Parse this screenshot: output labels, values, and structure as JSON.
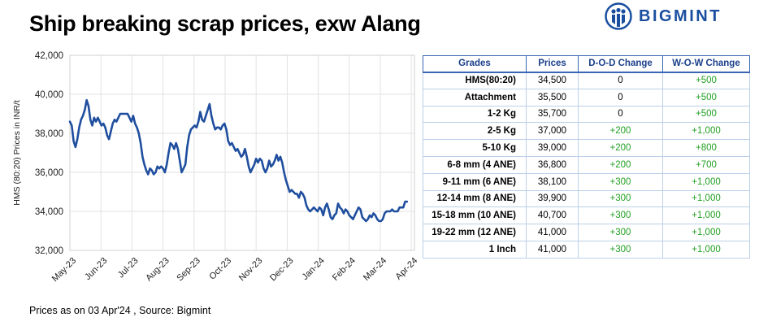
{
  "title": "Ship breaking scrap prices, exw Alang",
  "logo": {
    "text": "BIGMINT",
    "color": "#1a4fa0"
  },
  "footer": "Prices as on 03 Apr'24 , Source: Bigmint",
  "colors": {
    "line": "#1f4e9e",
    "positive": "#22a022",
    "table_border": "#3a66b5",
    "header_text": "#1a3f8a"
  },
  "chart_data": {
    "type": "line",
    "title": "",
    "ylabel": "HMS (80:20) Prices in INR/t",
    "xlabel": "",
    "ylim": [
      32000,
      42000
    ],
    "yticks": [
      32000,
      34000,
      36000,
      38000,
      40000,
      42000
    ],
    "ytick_labels": [
      "32,000",
      "34,000",
      "36,000",
      "38,000",
      "40,000",
      "42,000"
    ],
    "xtick_labels": [
      "May-23",
      "Jun-23",
      "Jul-23",
      "Aug-23",
      "Sep-23",
      "Oct-23",
      "Nov-23",
      "Dec-23",
      "Jan-24",
      "Feb-24",
      "Mar-24",
      "Apr-24"
    ],
    "x_month_start": 0,
    "x_month_end": 11.1,
    "grid": true,
    "legend": "none",
    "series": [
      {
        "points": [
          [
            0.0,
            38600
          ],
          [
            0.06,
            38400
          ],
          [
            0.12,
            37600
          ],
          [
            0.18,
            37300
          ],
          [
            0.24,
            37700
          ],
          [
            0.3,
            38300
          ],
          [
            0.36,
            38700
          ],
          [
            0.42,
            38900
          ],
          [
            0.48,
            39200
          ],
          [
            0.54,
            39700
          ],
          [
            0.6,
            39400
          ],
          [
            0.66,
            38700
          ],
          [
            0.72,
            38400
          ],
          [
            0.78,
            38800
          ],
          [
            0.84,
            38600
          ],
          [
            0.9,
            38800
          ],
          [
            0.96,
            38600
          ],
          [
            1.02,
            38400
          ],
          [
            1.08,
            38500
          ],
          [
            1.14,
            38300
          ],
          [
            1.2,
            37900
          ],
          [
            1.26,
            37700
          ],
          [
            1.32,
            38100
          ],
          [
            1.38,
            38500
          ],
          [
            1.44,
            38700
          ],
          [
            1.5,
            38600
          ],
          [
            1.56,
            38800
          ],
          [
            1.62,
            39000
          ],
          [
            1.74,
            39000
          ],
          [
            1.86,
            39000
          ],
          [
            1.92,
            38800
          ],
          [
            1.98,
            38600
          ],
          [
            2.04,
            38900
          ],
          [
            2.1,
            38500
          ],
          [
            2.16,
            38300
          ],
          [
            2.22,
            38000
          ],
          [
            2.28,
            37500
          ],
          [
            2.34,
            36800
          ],
          [
            2.4,
            36400
          ],
          [
            2.46,
            36100
          ],
          [
            2.52,
            35900
          ],
          [
            2.58,
            36200
          ],
          [
            2.64,
            36100
          ],
          [
            2.7,
            35900
          ],
          [
            2.76,
            36000
          ],
          [
            2.82,
            36300
          ],
          [
            2.88,
            36200
          ],
          [
            2.94,
            36300
          ],
          [
            3.0,
            36200
          ],
          [
            3.06,
            36000
          ],
          [
            3.12,
            36400
          ],
          [
            3.18,
            37000
          ],
          [
            3.24,
            37500
          ],
          [
            3.3,
            37400
          ],
          [
            3.36,
            37200
          ],
          [
            3.42,
            37500
          ],
          [
            3.48,
            37200
          ],
          [
            3.54,
            36600
          ],
          [
            3.6,
            36000
          ],
          [
            3.66,
            36200
          ],
          [
            3.72,
            36400
          ],
          [
            3.78,
            37300
          ],
          [
            3.84,
            37900
          ],
          [
            3.9,
            38200
          ],
          [
            3.96,
            38300
          ],
          [
            4.02,
            38400
          ],
          [
            4.08,
            38300
          ],
          [
            4.14,
            38600
          ],
          [
            4.2,
            39100
          ],
          [
            4.26,
            38700
          ],
          [
            4.32,
            38600
          ],
          [
            4.38,
            38900
          ],
          [
            4.44,
            39200
          ],
          [
            4.5,
            39500
          ],
          [
            4.56,
            38900
          ],
          [
            4.62,
            38500
          ],
          [
            4.68,
            38200
          ],
          [
            4.74,
            38300
          ],
          [
            4.8,
            38300
          ],
          [
            4.86,
            38200
          ],
          [
            4.92,
            38400
          ],
          [
            4.98,
            38500
          ],
          [
            5.04,
            38200
          ],
          [
            5.1,
            37600
          ],
          [
            5.16,
            37400
          ],
          [
            5.22,
            37500
          ],
          [
            5.28,
            37300
          ],
          [
            5.34,
            37100
          ],
          [
            5.4,
            37200
          ],
          [
            5.46,
            37000
          ],
          [
            5.52,
            36800
          ],
          [
            5.58,
            36900
          ],
          [
            5.64,
            37200
          ],
          [
            5.7,
            36800
          ],
          [
            5.76,
            36300
          ],
          [
            5.82,
            36000
          ],
          [
            5.88,
            36200
          ],
          [
            5.94,
            36400
          ],
          [
            6.0,
            36700
          ],
          [
            6.06,
            36500
          ],
          [
            6.12,
            36700
          ],
          [
            6.18,
            36600
          ],
          [
            6.24,
            36200
          ],
          [
            6.3,
            36000
          ],
          [
            6.36,
            36200
          ],
          [
            6.42,
            36600
          ],
          [
            6.48,
            36300
          ],
          [
            6.54,
            36400
          ],
          [
            6.6,
            36600
          ],
          [
            6.66,
            36900
          ],
          [
            6.72,
            36600
          ],
          [
            6.78,
            36800
          ],
          [
            6.84,
            36500
          ],
          [
            6.9,
            36000
          ],
          [
            6.96,
            35600
          ],
          [
            7.02,
            35300
          ],
          [
            7.08,
            35000
          ],
          [
            7.14,
            35100
          ],
          [
            7.2,
            35000
          ],
          [
            7.26,
            34900
          ],
          [
            7.32,
            34900
          ],
          [
            7.38,
            34700
          ],
          [
            7.44,
            35000
          ],
          [
            7.5,
            34900
          ],
          [
            7.56,
            34700
          ],
          [
            7.62,
            34300
          ],
          [
            7.68,
            34100
          ],
          [
            7.74,
            34000
          ],
          [
            7.8,
            34100
          ],
          [
            7.86,
            34200
          ],
          [
            7.92,
            34100
          ],
          [
            7.98,
            34000
          ],
          [
            8.04,
            34200
          ],
          [
            8.1,
            34100
          ],
          [
            8.16,
            33800
          ],
          [
            8.22,
            34200
          ],
          [
            8.28,
            34400
          ],
          [
            8.34,
            34100
          ],
          [
            8.4,
            33700
          ],
          [
            8.46,
            33600
          ],
          [
            8.52,
            33800
          ],
          [
            8.58,
            33900
          ],
          [
            8.64,
            34400
          ],
          [
            8.7,
            34200
          ],
          [
            8.76,
            34100
          ],
          [
            8.82,
            33900
          ],
          [
            8.88,
            34100
          ],
          [
            8.94,
            34000
          ],
          [
            9.0,
            33800
          ],
          [
            9.06,
            33700
          ],
          [
            9.12,
            33600
          ],
          [
            9.18,
            33800
          ],
          [
            9.24,
            34000
          ],
          [
            9.3,
            34200
          ],
          [
            9.36,
            34100
          ],
          [
            9.42,
            33700
          ],
          [
            9.48,
            33600
          ],
          [
            9.54,
            33500
          ],
          [
            9.6,
            33600
          ],
          [
            9.66,
            33800
          ],
          [
            9.72,
            33700
          ],
          [
            9.78,
            33900
          ],
          [
            9.84,
            33800
          ],
          [
            9.9,
            33600
          ],
          [
            9.96,
            33500
          ],
          [
            10.02,
            33500
          ],
          [
            10.08,
            33600
          ],
          [
            10.14,
            33900
          ],
          [
            10.2,
            34000
          ],
          [
            10.26,
            34000
          ],
          [
            10.32,
            34000
          ],
          [
            10.38,
            34100
          ],
          [
            10.44,
            34000
          ],
          [
            10.5,
            34000
          ],
          [
            10.56,
            34000
          ],
          [
            10.62,
            34200
          ],
          [
            10.68,
            34200
          ],
          [
            10.74,
            34200
          ],
          [
            10.8,
            34500
          ],
          [
            10.86,
            34500
          ]
        ]
      }
    ]
  },
  "table": {
    "headers": [
      "Grades",
      "Prices",
      "D-O-D Change",
      "W-O-W Change"
    ],
    "rows": [
      {
        "grade": "HMS(80:20)",
        "price": "34,500",
        "dod": "0",
        "wow": "+500"
      },
      {
        "grade": "Attachment",
        "price": "35,500",
        "dod": "0",
        "wow": "+500"
      },
      {
        "grade": "1-2 Kg",
        "price": "35,700",
        "dod": "0",
        "wow": "+500"
      },
      {
        "grade": "2-5 Kg",
        "price": "37,000",
        "dod": "+200",
        "wow": "+1,000"
      },
      {
        "grade": "5-10 Kg",
        "price": "39,000",
        "dod": "+200",
        "wow": "+800"
      },
      {
        "grade": "6-8 mm (4 ANE)",
        "price": "36,800",
        "dod": "+200",
        "wow": "+700"
      },
      {
        "grade": "9-11 mm (6 ANE)",
        "price": "38,100",
        "dod": "+300",
        "wow": "+1,000"
      },
      {
        "grade": "12-14 mm (8 ANE)",
        "price": "39,900",
        "dod": "+300",
        "wow": "+1,000"
      },
      {
        "grade": "15-18 mm (10 ANE)",
        "price": "40,700",
        "dod": "+300",
        "wow": "+1,000"
      },
      {
        "grade": "19-22 mm (12 ANE)",
        "price": "41,000",
        "dod": "+300",
        "wow": "+1,000"
      },
      {
        "grade": "1 Inch",
        "price": "41,000",
        "dod": "+300",
        "wow": "+1,000"
      }
    ]
  }
}
